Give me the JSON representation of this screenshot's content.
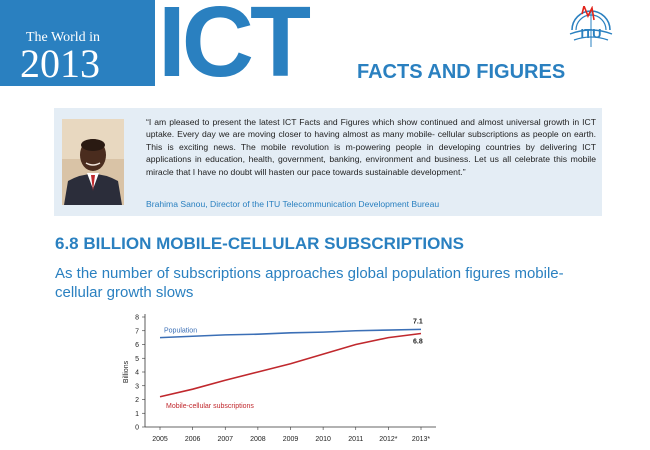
{
  "banner": {
    "world_in": "The World in",
    "year": "2013",
    "ict": "ICT",
    "facts_and_figures": "FACTS AND FIGURES",
    "logo_text": "ITU",
    "colors": {
      "blue": "#2a80c0",
      "red": "#e2231a"
    }
  },
  "quote": {
    "text": "“I am pleased to present the latest ICT Facts and Figures which show continued and almost universal growth in ICT uptake. Every day we are moving closer to having almost as many mobile- cellular subscriptions as people on earth. This is exciting news. The mobile revolution is m-powering people in developing countries by delivering ICT applications in education, health, government, banking, environment and business. Let us all celebrate this mobile miracle that I have no doubt will hasten our pace towards sustainable development.”",
    "author": "Brahima Sanou, Director of the ITU Telecommunication Development Bureau"
  },
  "headline": "6.8 BILLION MOBILE-CELLULAR SUBSCRIPTIONS",
  "subheadline": "As the number of subscriptions approaches global population figures mobile-cellular growth slows",
  "chart_data": {
    "type": "line",
    "x": [
      "2005",
      "2006",
      "2007",
      "2008",
      "2009",
      "2010",
      "2011",
      "2012*",
      "2013*"
    ],
    "ylabel": "Billions",
    "ylim": [
      0,
      8
    ],
    "yticks": [
      0,
      1,
      2,
      3,
      4,
      5,
      6,
      7,
      8
    ],
    "series": [
      {
        "name": "Population",
        "color": "#3b6fb6",
        "values": [
          6.5,
          6.6,
          6.7,
          6.75,
          6.85,
          6.9,
          7.0,
          7.05,
          7.1
        ]
      },
      {
        "name": "Mobile-cellular subscriptions",
        "color": "#c0282d",
        "values": [
          2.2,
          2.75,
          3.4,
          4.0,
          4.6,
          5.3,
          6.0,
          6.5,
          6.8
        ]
      }
    ],
    "end_labels": [
      "7.1",
      "6.8"
    ],
    "grid": false
  }
}
